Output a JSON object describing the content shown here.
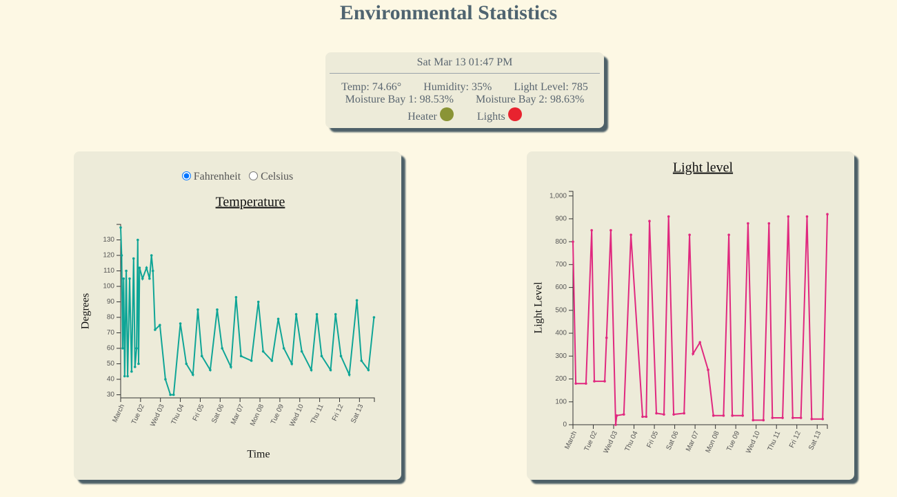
{
  "title": "Environmental Statistics",
  "status": {
    "time": "Sat Mar 13 01:47 PM",
    "temp": "Temp: 74.66°",
    "humidity": "Humidity: 35%",
    "light": "Light Level: 785",
    "moisture_1": "Moisture Bay 1: 98.53%",
    "moisture_2": "Moisture Bay 2: 98.63%",
    "indicators": [
      {
        "label": "Heater",
        "color": "#8a9436"
      },
      {
        "label": "Lights",
        "color": "#e8232f"
      }
    ]
  },
  "units": {
    "options": [
      {
        "label": "Fahrenheit",
        "checked": true
      },
      {
        "label": "Celsius",
        "checked": false
      }
    ]
  },
  "chart_data": [
    {
      "type": "line",
      "title": "Temperature",
      "x_label": "Time",
      "y_label": "Degrees",
      "color": "#0fa596",
      "x": [
        1.0,
        1.05,
        1.1,
        1.15,
        1.2,
        1.28,
        1.35,
        1.45,
        1.55,
        1.65,
        1.72,
        1.8,
        1.86,
        1.9,
        1.95,
        2.1,
        2.3,
        2.45,
        2.55,
        2.62,
        2.73,
        2.97,
        3.25,
        3.5,
        3.66,
        4.0,
        4.3,
        4.63,
        4.88,
        5.08,
        5.5,
        5.85,
        6.1,
        6.54,
        6.8,
        7.05,
        7.57,
        7.92,
        8.16,
        8.6,
        8.92,
        9.2,
        9.6,
        9.82,
        10.1,
        10.58,
        10.86,
        11.1,
        11.55,
        11.8,
        12.07,
        12.49,
        12.87,
        13.1,
        13.45,
        13.73
      ],
      "values": [
        138,
        120,
        60,
        105,
        42,
        110,
        42,
        105,
        45,
        118,
        48,
        60,
        130,
        50,
        112,
        105,
        112,
        105,
        120,
        110,
        72,
        75,
        40,
        30,
        30,
        76,
        50,
        43,
        85,
        55,
        46,
        85,
        60,
        48,
        93,
        55,
        52,
        90,
        58,
        52,
        79,
        60,
        50,
        82,
        58,
        46,
        82,
        55,
        46,
        82,
        55,
        43,
        91,
        52,
        46,
        80
      ],
      "xlim": [
        1,
        13.75
      ],
      "ylim": [
        28,
        140
      ],
      "xticks": [
        {
          "value": 1,
          "label": "March"
        },
        {
          "value": 2,
          "label": "Tue 02"
        },
        {
          "value": 3,
          "label": "Wed 03"
        },
        {
          "value": 4,
          "label": "Thu 04"
        },
        {
          "value": 5,
          "label": "Fri 05"
        },
        {
          "value": 6,
          "label": "Sat 06"
        },
        {
          "value": 7,
          "label": "Mar 07"
        },
        {
          "value": 8,
          "label": "Mon 08"
        },
        {
          "value": 9,
          "label": "Tue 09"
        },
        {
          "value": 10,
          "label": "Wed 10"
        },
        {
          "value": 11,
          "label": "Thu 11"
        },
        {
          "value": 12,
          "label": "Fri 12"
        },
        {
          "value": 13,
          "label": "Sat 13"
        }
      ],
      "yticks": [
        30,
        40,
        50,
        60,
        70,
        80,
        90,
        100,
        110,
        120,
        130
      ]
    },
    {
      "type": "line",
      "title": "Light level",
      "y_label": "Light Level",
      "color": "#e0287f",
      "x": [
        1.0,
        1.14,
        1.64,
        1.92,
        2.05,
        2.56,
        2.65,
        2.86,
        3.1,
        3.15,
        3.5,
        3.85,
        4.42,
        4.6,
        4.76,
        5.1,
        5.47,
        5.7,
        5.95,
        6.46,
        6.73,
        6.9,
        7.24,
        7.64,
        7.9,
        8.4,
        8.66,
        8.83,
        9.34,
        9.6,
        9.85,
        10.36,
        10.63,
        10.8,
        11.3,
        11.58,
        11.8,
        12.2,
        12.5,
        12.73,
        13.27,
        13.5
      ],
      "values": [
        800,
        180,
        180,
        850,
        190,
        190,
        380,
        850,
        0,
        40,
        45,
        830,
        35,
        35,
        890,
        50,
        45,
        910,
        45,
        50,
        830,
        310,
        360,
        240,
        40,
        40,
        830,
        40,
        40,
        880,
        20,
        20,
        880,
        30,
        30,
        910,
        30,
        30,
        910,
        25,
        25,
        920
      ],
      "xlim": [
        1,
        13.5
      ],
      "ylim": [
        0,
        1020
      ],
      "xticks": [
        {
          "value": 1,
          "label": "March"
        },
        {
          "value": 2,
          "label": "Tue 02"
        },
        {
          "value": 3,
          "label": "Wed 03"
        },
        {
          "value": 4,
          "label": "Thu 04"
        },
        {
          "value": 5,
          "label": "Fri 05"
        },
        {
          "value": 6,
          "label": "Sat 06"
        },
        {
          "value": 7,
          "label": "Mar 07"
        },
        {
          "value": 8,
          "label": "Mon 08"
        },
        {
          "value": 9,
          "label": "Tue 09"
        },
        {
          "value": 10,
          "label": "Wed 10"
        },
        {
          "value": 11,
          "label": "Thu 11"
        },
        {
          "value": 12,
          "label": "Fri 12"
        },
        {
          "value": 13,
          "label": "Sat 13"
        }
      ],
      "yticks": [
        0,
        100,
        200,
        300,
        400,
        500,
        600,
        700,
        800,
        900,
        {
          "value": 1000,
          "label": "1,000"
        }
      ]
    }
  ]
}
